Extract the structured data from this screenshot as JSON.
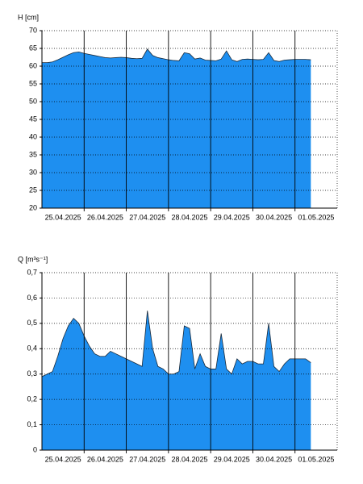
{
  "chart_data": [
    {
      "type": "area",
      "y_label": "H [cm]",
      "color": "#1e8ff0",
      "line_color": "#1a2a3a",
      "x": [
        0,
        3,
        6,
        9,
        12,
        15,
        18,
        21,
        24,
        27,
        30,
        33,
        36,
        39,
        42,
        45,
        48,
        51,
        54,
        57,
        60,
        63,
        66,
        69,
        72,
        75,
        78,
        81,
        84,
        87,
        90,
        93,
        96,
        99,
        102,
        105,
        108,
        111,
        114,
        117,
        120,
        123,
        126,
        129,
        132,
        135,
        138,
        141,
        144,
        147,
        150,
        153
      ],
      "values": [
        61,
        61,
        61.2,
        61.8,
        62.5,
        63.2,
        63.8,
        64,
        63.6,
        63.3,
        63,
        62.7,
        62.4,
        62.3,
        62.4,
        62.5,
        62.4,
        62.2,
        62.1,
        62.2,
        64.8,
        63,
        62.4,
        62.1,
        61.8,
        61.6,
        61.5,
        63.8,
        63.5,
        62,
        62.3,
        61.7,
        61.6,
        61.5,
        62,
        64.3,
        61.8,
        61.3,
        61.9,
        62,
        61.9,
        61.8,
        61.9,
        63.8,
        61.6,
        61.3,
        61.7,
        61.8,
        61.9,
        61.9,
        61.9,
        61.8
      ],
      "xlim": [
        0,
        168
      ],
      "xticks": [
        {
          "value": 12,
          "label": "25.04.2025"
        },
        {
          "value": 36,
          "label": "26.04.2025"
        },
        {
          "value": 60,
          "label": "27.04.2025"
        },
        {
          "value": 84,
          "label": "28.04.2025"
        },
        {
          "value": 108,
          "label": "29.04.2025"
        },
        {
          "value": 132,
          "label": "30.04.2025"
        },
        {
          "value": 156,
          "label": "01.05.2025"
        }
      ],
      "xgrid": [
        24,
        48,
        72,
        96,
        120,
        144
      ],
      "ylim": [
        20,
        70
      ],
      "yticks": [
        20,
        25,
        30,
        35,
        40,
        45,
        50,
        55,
        60,
        65,
        70
      ],
      "grid": true
    },
    {
      "type": "area",
      "y_label": "Q [m³s⁻¹]",
      "color": "#1e8ff0",
      "line_color": "#1a2a3a",
      "x": [
        0,
        3,
        6,
        9,
        12,
        15,
        18,
        21,
        24,
        27,
        30,
        33,
        36,
        39,
        42,
        45,
        48,
        51,
        54,
        57,
        60,
        63,
        66,
        69,
        72,
        75,
        78,
        81,
        84,
        87,
        90,
        93,
        96,
        99,
        102,
        105,
        108,
        111,
        114,
        117,
        120,
        123,
        126,
        129,
        132,
        135,
        138,
        141,
        144,
        147,
        150,
        153
      ],
      "values": [
        0.29,
        0.3,
        0.31,
        0.37,
        0.44,
        0.49,
        0.52,
        0.5,
        0.45,
        0.41,
        0.38,
        0.37,
        0.37,
        0.39,
        0.38,
        0.37,
        0.36,
        0.35,
        0.34,
        0.33,
        0.55,
        0.4,
        0.33,
        0.32,
        0.3,
        0.3,
        0.31,
        0.49,
        0.48,
        0.32,
        0.38,
        0.33,
        0.32,
        0.32,
        0.46,
        0.32,
        0.3,
        0.36,
        0.34,
        0.35,
        0.35,
        0.34,
        0.34,
        0.5,
        0.33,
        0.31,
        0.34,
        0.36,
        0.36,
        0.36,
        0.36,
        0.345
      ],
      "xlim": [
        0,
        168
      ],
      "xticks": [
        {
          "value": 12,
          "label": "25.04.2025"
        },
        {
          "value": 36,
          "label": "26.04.2025"
        },
        {
          "value": 60,
          "label": "27.04.2025"
        },
        {
          "value": 84,
          "label": "28.04.2025"
        },
        {
          "value": 108,
          "label": "29.04.2025"
        },
        {
          "value": 132,
          "label": "30.04.2025"
        },
        {
          "value": 156,
          "label": "01.05.2025"
        }
      ],
      "xgrid": [
        24,
        48,
        72,
        96,
        120,
        144
      ],
      "ylim": [
        0,
        0.7
      ],
      "yticks": [
        0,
        {
          "value": 0.1,
          "label": "0,1"
        },
        {
          "value": 0.2,
          "label": "0,2"
        },
        {
          "value": 0.3,
          "label": "0,3"
        },
        {
          "value": 0.4,
          "label": "0,4"
        },
        {
          "value": 0.5,
          "label": "0,5"
        },
        {
          "value": 0.6,
          "label": "0,6"
        },
        {
          "value": 0.7,
          "label": "0,7"
        }
      ],
      "grid": true
    }
  ]
}
